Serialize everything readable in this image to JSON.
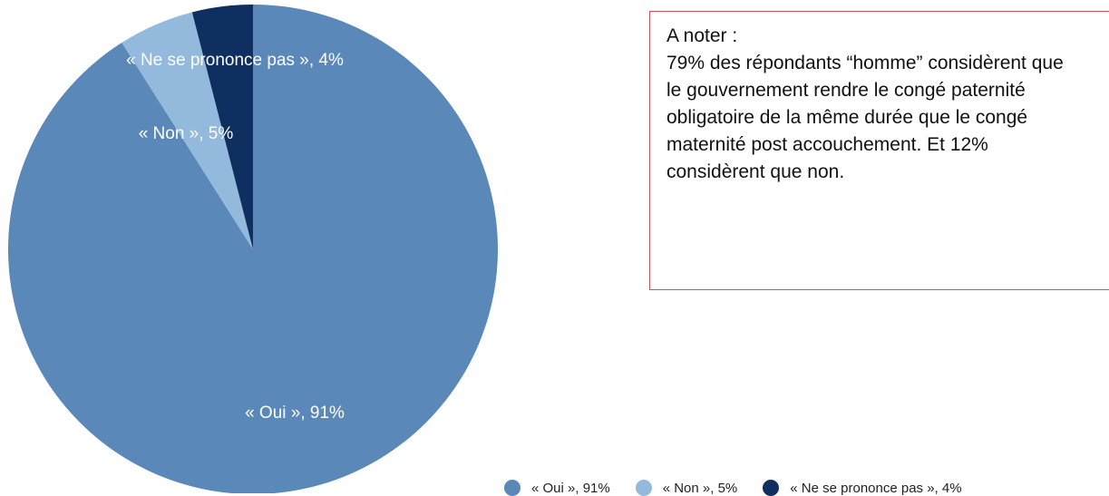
{
  "chart_data": {
    "type": "pie",
    "slices": [
      {
        "label": "« Oui », 91%",
        "value": 91,
        "color": "#5a88b8"
      },
      {
        "label": "« Non », 5%",
        "value": 5,
        "color": "#93b9dc"
      },
      {
        "label": "« Ne se prononce pas », 4%",
        "value": 4,
        "color": "#0e2f5f"
      }
    ],
    "legend": {
      "placement": "bottom-right",
      "items": [
        "« Oui », 91%",
        "« Non », 5%",
        "« Ne se prononce pas », 4%"
      ]
    }
  },
  "note": {
    "title": "A noter :",
    "lines": [
      "79% des répondants “homme” considèrent que",
      "le gouvernement rendre le congé paternité",
      "obligatoire de la même durée que le congé",
      "maternité post accouchement. Et 12%",
      "considèrent que non."
    ]
  }
}
